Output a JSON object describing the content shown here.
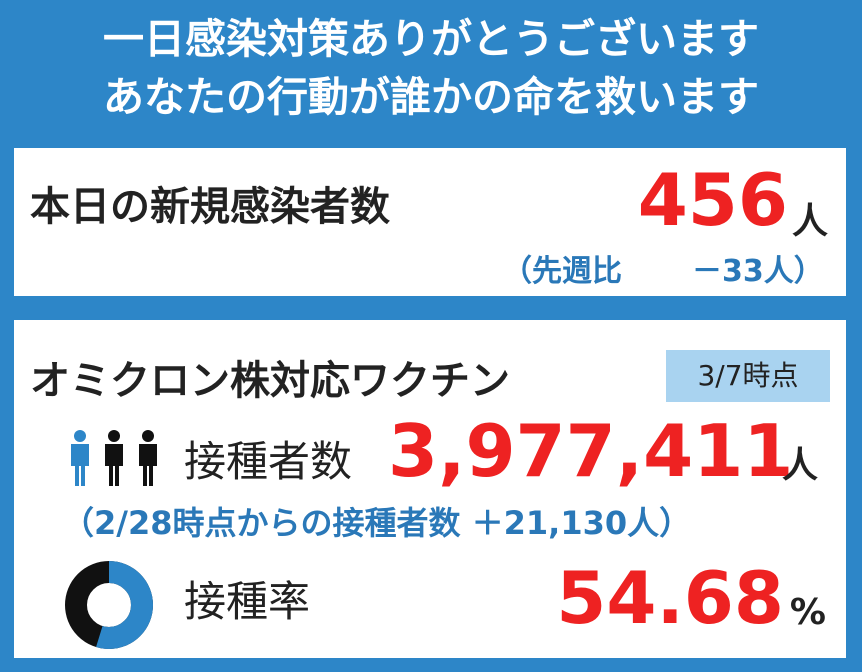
{
  "header": {
    "line1": "一日感染対策ありがとうございます",
    "line2": "あなたの行動が誰かの命を救います"
  },
  "daily": {
    "title": "本日の新規感染者数",
    "count": "456",
    "unit": "人",
    "compare_label": "（先週比",
    "compare_value": "－33人）"
  },
  "vaccine": {
    "title": "オミクロン株対応ワクチン",
    "as_of": "3/7時点",
    "vaccinated_label": "接種者数",
    "vaccinated_count": "3,977,411",
    "vaccinated_unit": "人",
    "delta_text": "（2/28時点からの接種者数 ＋21,130人）",
    "rate_label": "接種率",
    "rate_value": "54.68",
    "rate_unit": "%",
    "rate_percent": 54.68,
    "colors": {
      "accent_blue": "#2d86c8",
      "donut_blue": "#2d86c8",
      "donut_dark": "#111111",
      "alert_red": "#ee2222"
    }
  },
  "icons": {
    "people": "people-icon",
    "donut": "donut-chart-icon"
  }
}
